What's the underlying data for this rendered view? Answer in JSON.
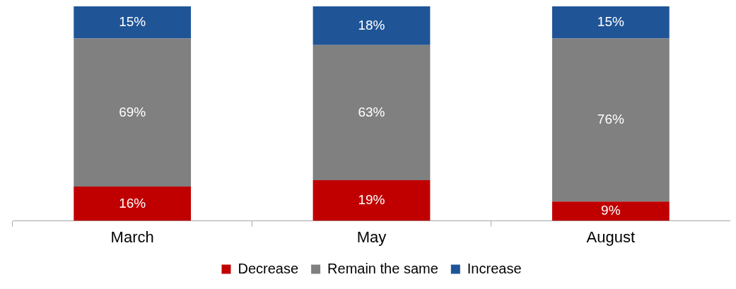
{
  "chart_data": {
    "type": "bar",
    "stacked": true,
    "categories": [
      "March",
      "May",
      "August"
    ],
    "legend": "bottom",
    "grid": false,
    "series": [
      {
        "name": "Decrease",
        "color": "#c00000",
        "values": [
          16,
          19,
          9
        ],
        "value_labels": [
          "16%",
          "19%",
          "9%"
        ]
      },
      {
        "name": "Remain the same",
        "color": "#808080",
        "values": [
          69,
          63,
          76
        ],
        "value_labels": [
          "69%",
          "63%",
          "76%"
        ]
      },
      {
        "name": "Increase",
        "color": "#1f5597",
        "values": [
          15,
          18,
          15
        ],
        "value_labels": [
          "15%",
          "18%",
          "15%"
        ]
      }
    ]
  }
}
